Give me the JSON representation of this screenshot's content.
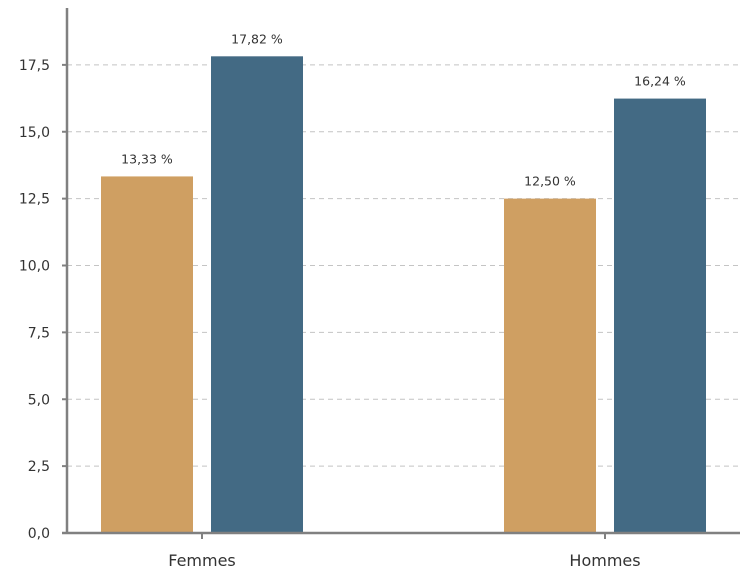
{
  "chart_data": {
    "type": "bar",
    "categories": [
      "Femmes",
      "Hommes"
    ],
    "series": [
      {
        "values": [
          13.33,
          12.5
        ],
        "labels": [
          "13,33 %",
          "12,50 %"
        ],
        "color": "#cf9f62"
      },
      {
        "values": [
          17.82,
          16.24
        ],
        "labels": [
          "17,82 %",
          "16,24 %"
        ],
        "color": "#436a84"
      }
    ],
    "ylim": [
      0,
      19.5
    ],
    "yticks": [
      0,
      2.5,
      5,
      7.5,
      10,
      12.5,
      15,
      17.5
    ],
    "ytick_labels": [
      "0,0",
      "2,5",
      "5,0",
      "7,5",
      "10,0",
      "12,5",
      "15,0",
      "17,5"
    ],
    "grid": true,
    "legend": "none",
    "title": "",
    "xlabel": "",
    "ylabel": ""
  }
}
